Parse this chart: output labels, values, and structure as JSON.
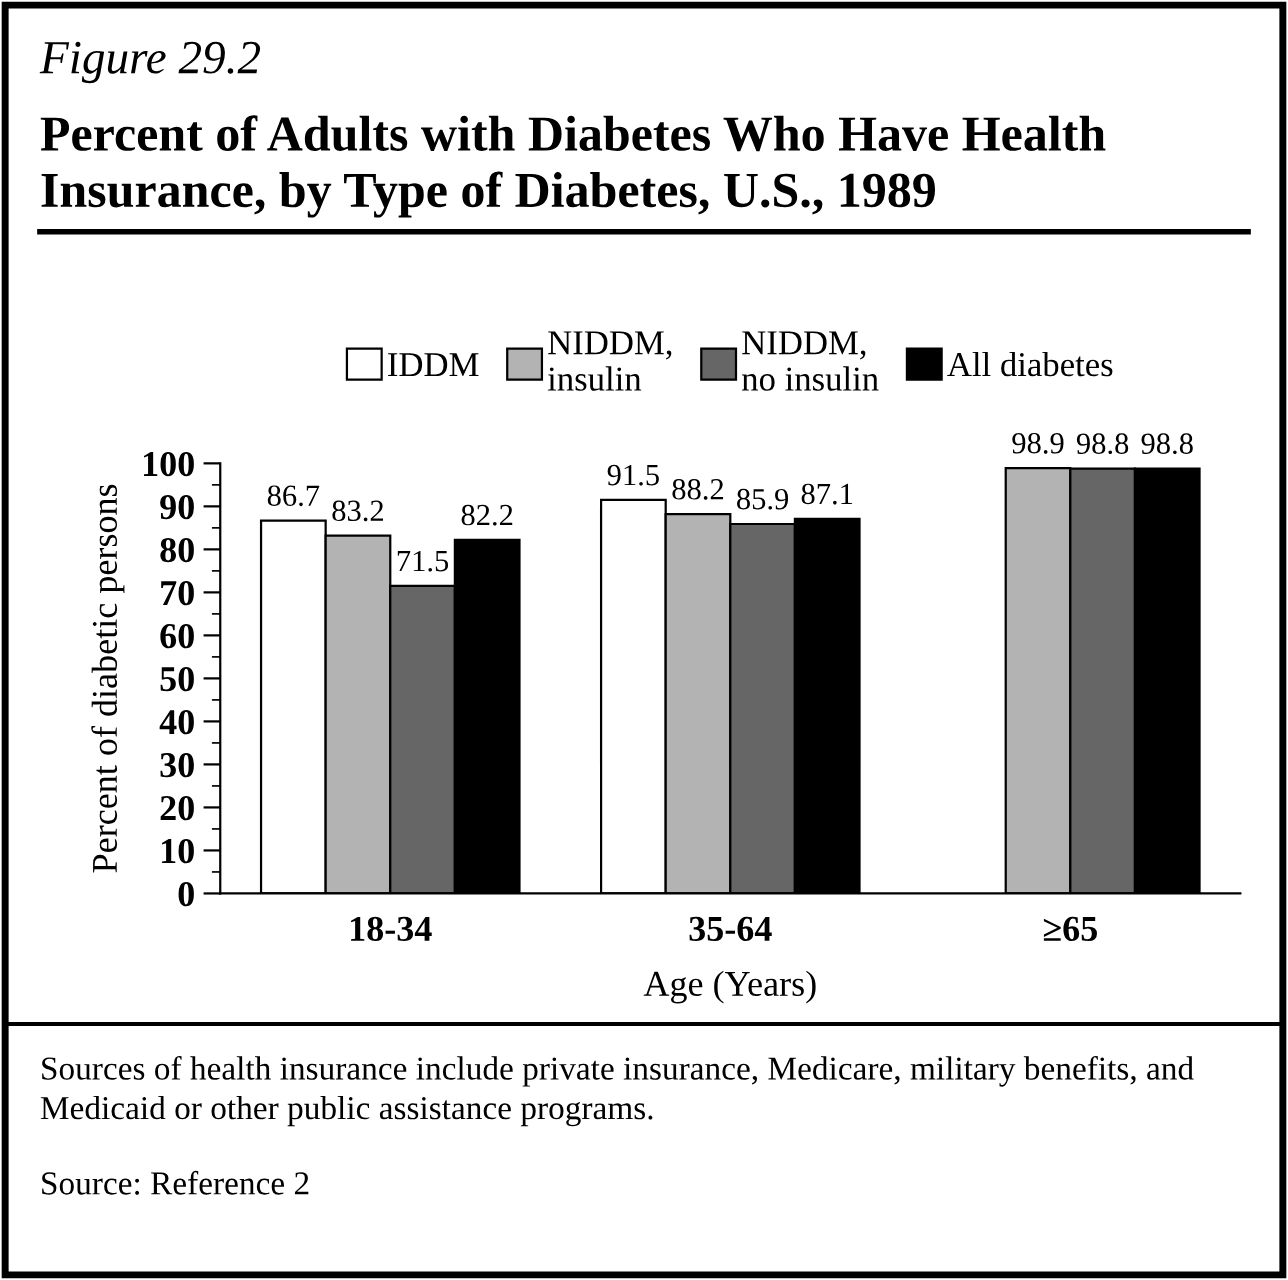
{
  "chart_data": {
    "type": "bar",
    "subtitle": "Figure 29.2",
    "title": "Percent of Adults with Diabetes Who Have Health Insurance, by Type of Diabetes, U.S., 1989",
    "xlabel": "Age (Years)",
    "ylabel": "Percent of diabetic persons",
    "categories": [
      "18-34",
      "35-64",
      "≥65"
    ],
    "series": [
      {
        "name": "IDDM",
        "color": "#ffffff",
        "values": [
          86.7,
          91.5,
          null
        ]
      },
      {
        "name": "NIDDM,\ninsulin",
        "color": "#b3b3b3",
        "values": [
          83.2,
          88.2,
          98.9
        ]
      },
      {
        "name": "NIDDM,\nno insulin",
        "color": "#666666",
        "values": [
          71.5,
          85.9,
          98.8
        ]
      },
      {
        "name": "All diabetes",
        "color": "#000000",
        "values": [
          82.2,
          87.1,
          98.8
        ]
      }
    ],
    "ylim": [
      0,
      100
    ],
    "yticks": [
      0,
      10,
      20,
      30,
      40,
      50,
      60,
      70,
      80,
      90,
      100
    ],
    "data_labels": true,
    "legend": "top",
    "grid": false,
    "annotations": [
      "Sources of health insurance include private insurance, Medicare, military benefits, and Medicaid or other public assistance programs.",
      "Source: Reference 2"
    ]
  }
}
